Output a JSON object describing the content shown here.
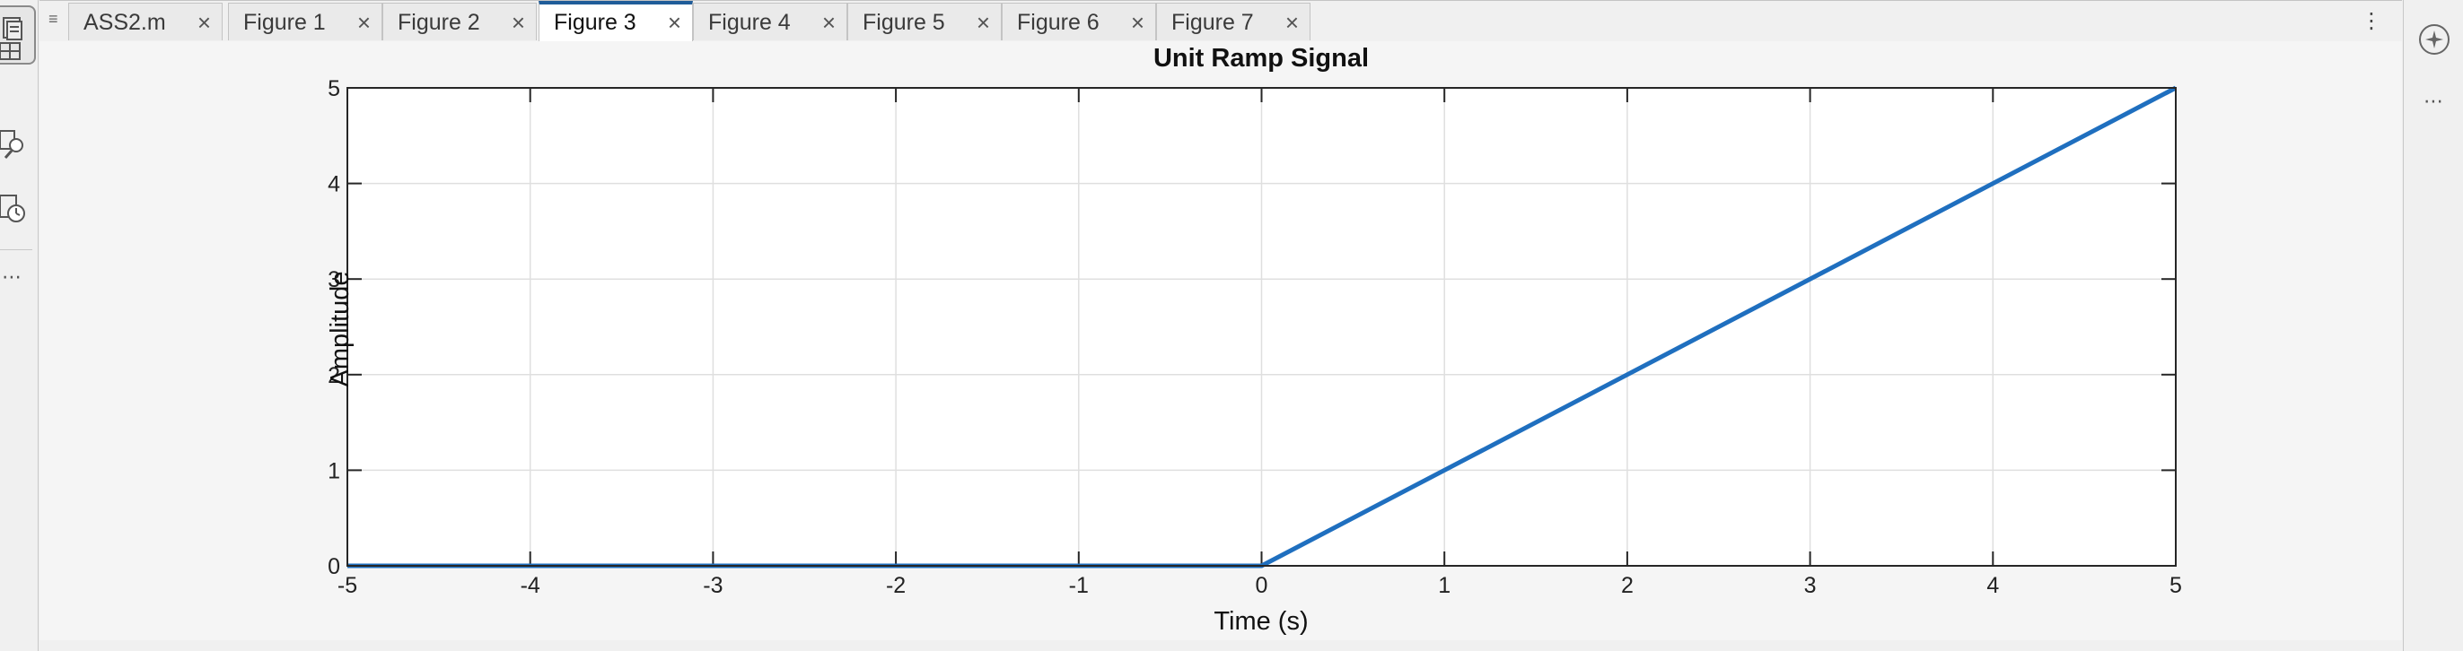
{
  "tabs": [
    {
      "label": "ASS2.m",
      "active": false
    },
    {
      "label": "Figure 1",
      "active": false
    },
    {
      "label": "Figure 2",
      "active": false
    },
    {
      "label": "Figure 3",
      "active": true
    },
    {
      "label": "Figure 4",
      "active": false
    },
    {
      "label": "Figure 5",
      "active": false
    },
    {
      "label": "Figure 6",
      "active": false
    },
    {
      "label": "Figure 7",
      "active": false
    }
  ],
  "colors": {
    "line": "#1f6fbf",
    "active_tab_accent": "#1f5c99",
    "axes_background": "#ffffff",
    "grid": "#dfdfdf"
  },
  "icons": {
    "left_toolstrip": [
      "editor-icon",
      "layout-icon",
      "find-icon",
      "history-icon"
    ],
    "right_toolstrip": [
      "assistant-icon"
    ]
  },
  "chart_data": {
    "type": "line",
    "title": "Unit Ramp Signal",
    "xlabel": "Time (s)",
    "ylabel": "Amplitude",
    "xlim": [
      -5,
      5
    ],
    "ylim": [
      0,
      5
    ],
    "xticks": [
      -5,
      -4,
      -3,
      -2,
      -1,
      0,
      1,
      2,
      3,
      4,
      5
    ],
    "yticks": [
      0,
      1,
      2,
      3,
      4,
      5
    ],
    "grid": true,
    "series": [
      {
        "x": [
          -5,
          0,
          5
        ],
        "y": [
          0,
          0,
          5
        ]
      }
    ]
  }
}
